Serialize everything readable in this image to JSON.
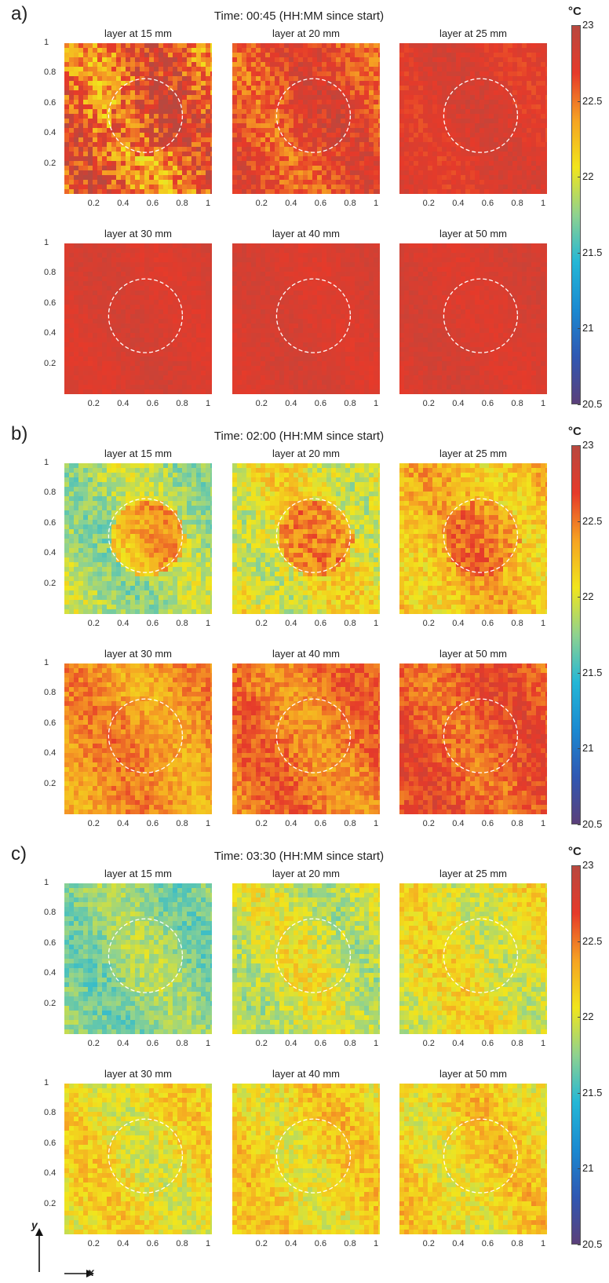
{
  "colorbar": {
    "unit": "°C",
    "min": 20.5,
    "max": 23,
    "tick_labels": [
      "23",
      "22.5",
      "22",
      "21.5",
      "21",
      "20.5"
    ],
    "stops": [
      "#5b3f7a",
      "#2f58b3",
      "#1b8ad1",
      "#24b7d6",
      "#8fd28f",
      "#f1e51c",
      "#f6a323",
      "#e63a2a",
      "#b8483f"
    ]
  },
  "axis_ticks": {
    "x": [
      "0.2",
      "0.4",
      "0.6",
      "0.8",
      "1"
    ],
    "y": [
      "1",
      "0.8",
      "0.6",
      "0.4",
      "0.2"
    ]
  },
  "axis_arrows": {
    "y": "y",
    "x": "x"
  },
  "chart_data": [
    {
      "type": "heatmap",
      "panel": "a)",
      "title": "Time: 00:45 (HH:MM since start)",
      "xlim": [
        0,
        1
      ],
      "ylim": [
        0,
        1
      ],
      "circle": {
        "cx": 0.55,
        "cy": 0.52,
        "r": 0.25
      },
      "subplots": [
        {
          "title": "layer at 15 mm",
          "mean": 22.55,
          "variation": 0.55,
          "center_offset": 0.2
        },
        {
          "title": "layer at 20 mm",
          "mean": 22.65,
          "variation": 0.3,
          "center_offset": 0.05
        },
        {
          "title": "layer at 25 mm",
          "mean": 22.75,
          "variation": 0.15,
          "center_offset": 0.0
        },
        {
          "title": "layer at 30 mm",
          "mean": 22.78,
          "variation": 0.1,
          "center_offset": 0.0
        },
        {
          "title": "layer at 40 mm",
          "mean": 22.78,
          "variation": 0.1,
          "center_offset": 0.0
        },
        {
          "title": "layer at 50 mm",
          "mean": 22.78,
          "variation": 0.1,
          "center_offset": 0.0
        }
      ]
    },
    {
      "type": "heatmap",
      "panel": "b)",
      "title": "Time: 02:00 (HH:MM since start)",
      "xlim": [
        0,
        1
      ],
      "ylim": [
        0,
        1
      ],
      "circle": {
        "cx": 0.55,
        "cy": 0.52,
        "r": 0.25
      },
      "subplots": [
        {
          "title": "layer at 15 mm",
          "mean": 21.85,
          "variation": 0.3,
          "center_offset": 0.45
        },
        {
          "title": "layer at 20 mm",
          "mean": 22.05,
          "variation": 0.35,
          "center_offset": 0.3
        },
        {
          "title": "layer at 25 mm",
          "mean": 22.25,
          "variation": 0.3,
          "center_offset": 0.2
        },
        {
          "title": "layer at 30 mm",
          "mean": 22.4,
          "variation": 0.25,
          "center_offset": 0.05
        },
        {
          "title": "layer at 40 mm",
          "mean": 22.5,
          "variation": 0.25,
          "center_offset": 0.0
        },
        {
          "title": "layer at 50 mm",
          "mean": 22.6,
          "variation": 0.25,
          "center_offset": 0.0
        }
      ]
    },
    {
      "type": "heatmap",
      "panel": "c)",
      "title": "Time: 03:30 (HH:MM since start)",
      "xlim": [
        0,
        1
      ],
      "ylim": [
        0,
        1
      ],
      "circle": {
        "cx": 0.55,
        "cy": 0.52,
        "r": 0.25
      },
      "subplots": [
        {
          "title": "layer at 15 mm",
          "mean": 21.75,
          "variation": 0.25,
          "center_offset": 0.05
        },
        {
          "title": "layer at 20 mm",
          "mean": 21.95,
          "variation": 0.3,
          "center_offset": 0.05
        },
        {
          "title": "layer at 25 mm",
          "mean": 22.05,
          "variation": 0.3,
          "center_offset": 0.0
        },
        {
          "title": "layer at 30 mm",
          "mean": 22.1,
          "variation": 0.3,
          "center_offset": 0.0
        },
        {
          "title": "layer at 40 mm",
          "mean": 22.15,
          "variation": 0.3,
          "center_offset": 0.0
        },
        {
          "title": "layer at 50 mm",
          "mean": 22.15,
          "variation": 0.3,
          "center_offset": 0.0
        }
      ]
    }
  ]
}
